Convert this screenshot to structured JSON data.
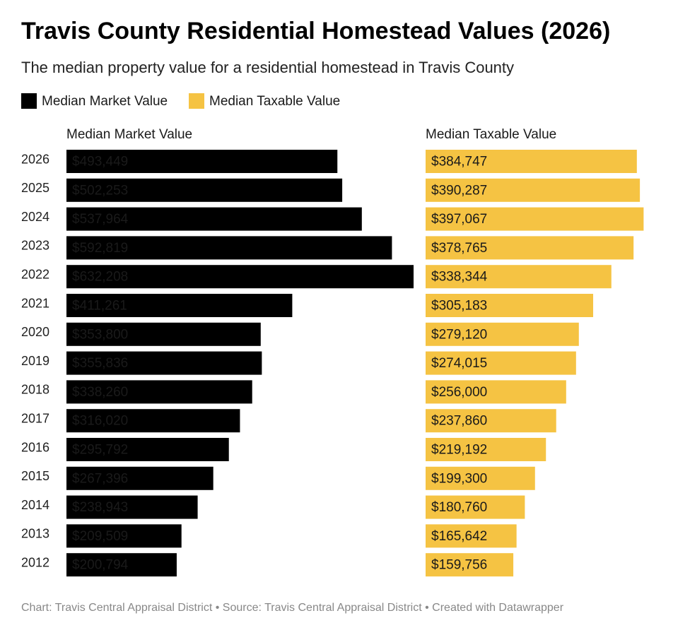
{
  "chart_data": {
    "type": "bar",
    "title": "Travis County Residential Homestead Values (2026)",
    "subtitle": "The median property value for a residential homestead in Travis County",
    "footer": "Chart: Travis Central Appraisal District • Source: Travis Central Appraisal District • Created with Datawrapper",
    "categories": [
      "2026",
      "2025",
      "2024",
      "2023",
      "2022",
      "2021",
      "2020",
      "2019",
      "2018",
      "2017",
      "2016",
      "2015",
      "2014",
      "2013",
      "2012"
    ],
    "series": [
      {
        "name": "Median Market Value",
        "color": "#000000",
        "values": [
          493449,
          502253,
          537964,
          592819,
          632208,
          411261,
          353800,
          355836,
          338260,
          316020,
          295792,
          267396,
          238943,
          209509,
          200794
        ],
        "value_labels": [
          "$493,449",
          "$502,253",
          "$537,964",
          "$592,819",
          "$632,208",
          "$411,261",
          "$353,800",
          "$355,836",
          "$338,260",
          "$316,020",
          "$295,792",
          "$267,396",
          "$238,943",
          "$209,509",
          "$200,794"
        ]
      },
      {
        "name": "Median Taxable Value",
        "color": "#f5c343",
        "values": [
          384747,
          390287,
          397067,
          378765,
          338344,
          305183,
          279120,
          274015,
          256000,
          237860,
          219192,
          199300,
          180760,
          165642,
          159756
        ],
        "value_labels": [
          "$384,747",
          "$390,287",
          "$397,067",
          "$378,765",
          "$338,344",
          "$305,183",
          "$279,120",
          "$274,015",
          "$256,000",
          "$237,860",
          "$219,192",
          "$199,300",
          "$180,760",
          "$165,642",
          "$159,756"
        ]
      }
    ]
  }
}
